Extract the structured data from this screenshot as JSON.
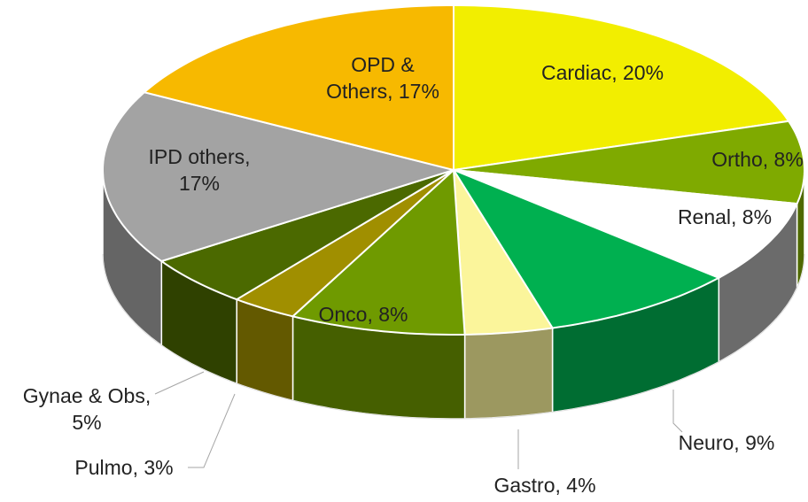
{
  "chart_data": {
    "type": "pie3d",
    "values": [
      20,
      8,
      8,
      9,
      4,
      8,
      3,
      5,
      17,
      17
    ],
    "value_labels": [
      "Cardiac, 20%",
      "Ortho, 8%",
      "Renal, 8%",
      "Neuro, 9%",
      "Gastro, 4%",
      "Onco, 8%",
      "Pulmo, 3%",
      "Gynae & Obs, 5%",
      "IPD others, 17%",
      "OPD & Others, 17%"
    ],
    "colors": [
      "#f2ee00",
      "#7faa00",
      "#ffffff",
      "#00b050",
      "#fbf59b",
      "#6f9a00",
      "#a08f00",
      "#4b6900",
      "#a3a3a3",
      "#f7b900"
    ]
  }
}
